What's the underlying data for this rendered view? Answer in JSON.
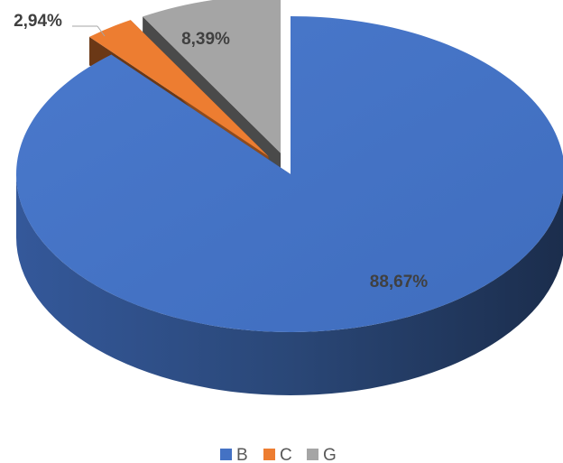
{
  "chart_data": {
    "type": "pie",
    "style": "3d-exploded",
    "title": "",
    "categories": [
      "B",
      "C",
      "G"
    ],
    "values": [
      88.67,
      2.94,
      8.39
    ],
    "labels": [
      "88,67%",
      "2,94%",
      "8,39%"
    ],
    "colors": [
      "#4472C4",
      "#ED7D31",
      "#A5A5A5"
    ],
    "legend": {
      "position": "bottom",
      "entries": [
        "B",
        "C",
        "G"
      ]
    }
  }
}
